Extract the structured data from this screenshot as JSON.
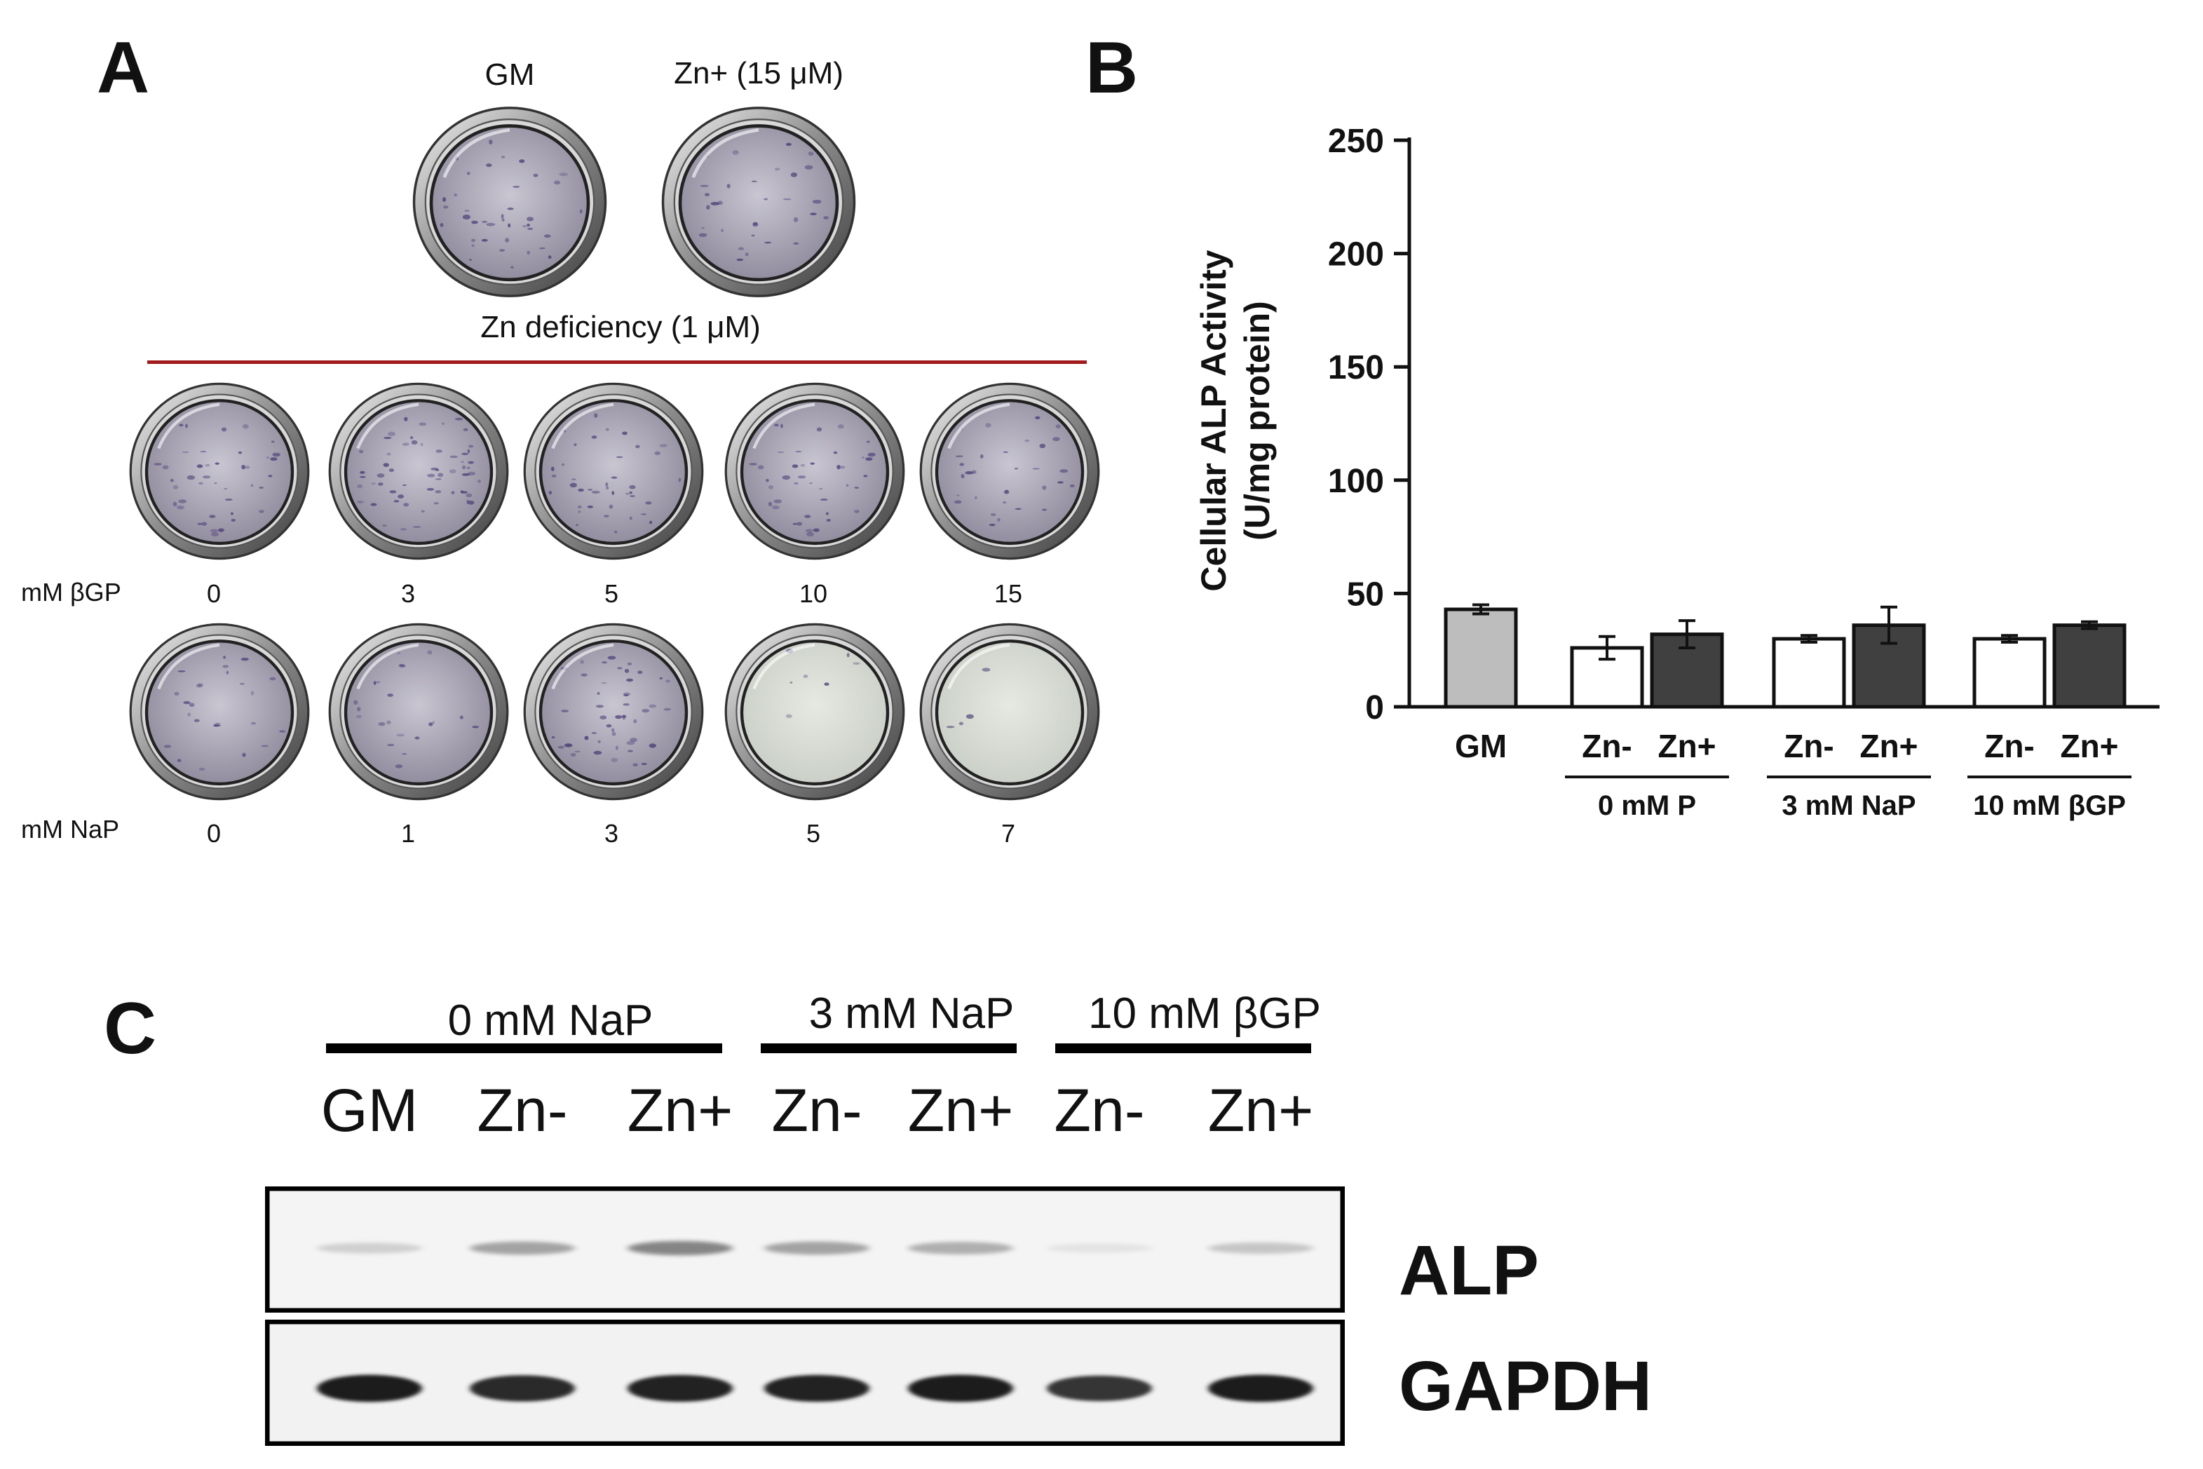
{
  "panel_a": {
    "letter": "A",
    "top_wells": [
      {
        "label": "GM",
        "stain": 0.55
      },
      {
        "label": "Zn+ (15 μM)",
        "stain": 0.45
      }
    ],
    "deficiency_label": "Zn deficiency (1 μM)",
    "bgp_row": {
      "label": "mM βGP",
      "doses": [
        "0",
        "3",
        "5",
        "10",
        "15"
      ],
      "stain": [
        0.6,
        0.85,
        0.55,
        0.6,
        0.45
      ]
    },
    "nap_row": {
      "label": "mM NaP",
      "doses": [
        "0",
        "1",
        "3",
        "5",
        "7"
      ],
      "stain": [
        0.35,
        0.3,
        0.7,
        0.1,
        0.05
      ]
    }
  },
  "panel_b": {
    "letter": "B",
    "chart_data": {
      "type": "bar",
      "ylabel_line1": "Cellular ALP Activity",
      "ylabel_line2": "(U/mg protein)",
      "ylim": [
        0,
        250
      ],
      "yticks": [
        "0",
        "50",
        "100",
        "150",
        "200",
        "250"
      ],
      "bars": [
        {
          "group": "GM",
          "label": "GM",
          "value": 43,
          "error": 2,
          "color": "#bdbdbd"
        },
        {
          "group": "0 mM P",
          "label": "Zn-",
          "value": 26,
          "error": 5,
          "color": "#ffffff"
        },
        {
          "group": "0 mM P",
          "label": "Zn+",
          "value": 32,
          "error": 6,
          "color": "#404040"
        },
        {
          "group": "3 mM NaP",
          "label": "Zn-",
          "value": 30,
          "error": 1.5,
          "color": "#ffffff"
        },
        {
          "group": "3 mM NaP",
          "label": "Zn+",
          "value": 36,
          "error": 8,
          "color": "#404040"
        },
        {
          "group": "10 mM βGP",
          "label": "Zn-",
          "value": 30,
          "error": 1.5,
          "color": "#ffffff"
        },
        {
          "group": "10 mM βGP",
          "label": "Zn+",
          "value": 36,
          "error": 1.5,
          "color": "#404040"
        }
      ],
      "group_labels": [
        "0 mM P",
        "3 mM NaP",
        "10 mM βGP"
      ]
    }
  },
  "panel_c": {
    "letter": "C",
    "group_headers": [
      "0 mM NaP",
      "3 mM NaP",
      "10 mM βGP"
    ],
    "lanes": [
      "GM",
      "Zn-",
      "Zn+",
      "Zn-",
      "Zn+",
      "Zn-",
      "Zn+"
    ],
    "blots": [
      {
        "name": "ALP",
        "intensity": [
          0.25,
          0.45,
          0.55,
          0.45,
          0.4,
          0.12,
          0.3
        ]
      },
      {
        "name": "GAPDH",
        "intensity": [
          0.95,
          0.9,
          0.93,
          0.93,
          0.95,
          0.85,
          0.95
        ]
      }
    ]
  }
}
